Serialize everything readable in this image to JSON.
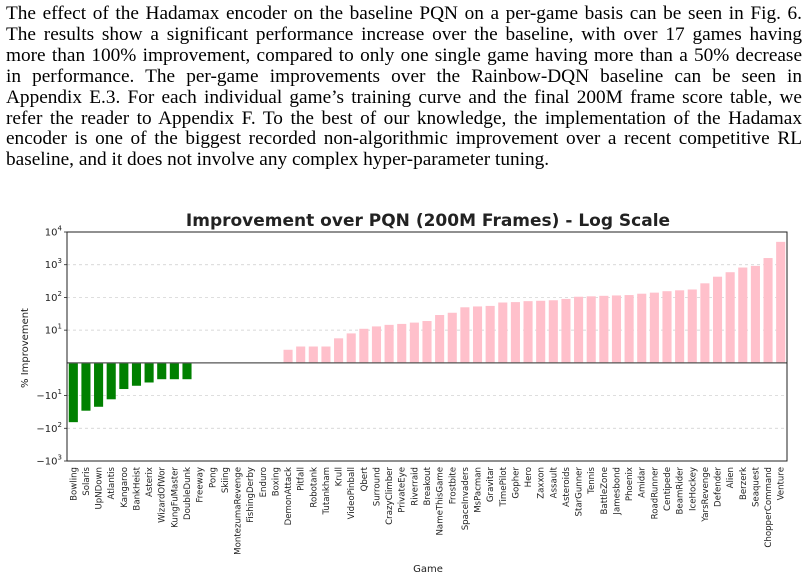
{
  "paragraph": {
    "lines": [
      "The effect of the Hadamax encoder on the baseline PQN on a per-game basis can be seen in Fig. 6.",
      "The results show a significant performance increase over the baseline, with over 17 games having",
      "more than 100% improvement, compared to only one single game having more than a 50% decrease",
      "in performance.  The per-game improvements over the Rainbow-DQN baseline can be seen in",
      "Appendix E.3. For each individual game’s training curve and the final 200M frame score table, we",
      "refer the reader to Appendix F. To the best of our knowledge, the implementation of the Hadamax",
      "encoder is one of the biggest recorded non-algorithmic improvement over a recent competitive RL",
      "baseline, and it does not involve any complex hyper-parameter tuning."
    ]
  },
  "chart_data": {
    "type": "bar",
    "title": "Improvement over PQN (200M Frames) - Log Scale",
    "xlabel": "Game",
    "ylabel": "% Improvement",
    "yscale": "symlog",
    "ylim": [
      -1000,
      10000
    ],
    "yticks": [
      {
        "value": 10000,
        "base": "10",
        "exp": "4"
      },
      {
        "value": 1000,
        "base": "10",
        "exp": "3"
      },
      {
        "value": 100,
        "base": "10",
        "exp": "2"
      },
      {
        "value": 10,
        "base": "10",
        "exp": "1"
      },
      {
        "value": -10,
        "base": "−10",
        "exp": "1"
      },
      {
        "value": -100,
        "base": "−10",
        "exp": "2"
      },
      {
        "value": -1000,
        "base": "−10",
        "exp": "3"
      }
    ],
    "grid": true,
    "colors": {
      "negative": "#008000",
      "positive": "#ffc0cb",
      "grid": "#cccccc",
      "zero_line": "#555555"
    },
    "categories": [
      "Bowling",
      "Solaris",
      "UpNDown",
      "Atlantis",
      "Kangaroo",
      "BankHeist",
      "Asterix",
      "WizardOfWor",
      "KungFuMaster",
      "DoubleDunk",
      "Freeway",
      "Pong",
      "Skiing",
      "MontezumaRevenge",
      "FishingDerby",
      "Enduro",
      "Boxing",
      "DemonAttack",
      "Pitfall",
      "Robotank",
      "Tutankham",
      "Krull",
      "VideoPinball",
      "Qbert",
      "Surround",
      "CrazyClimber",
      "PrivateEye",
      "Riverraid",
      "Breakout",
      "NameThisGame",
      "Frostbite",
      "SpaceInvaders",
      "MsPacman",
      "Gravitar",
      "TimePilot",
      "Gopher",
      "Hero",
      "Zaxxon",
      "Assault",
      "Asteroids",
      "StarGunner",
      "Tennis",
      "BattleZone",
      "Jamesbond",
      "Phoenix",
      "Amidar",
      "RoadRunner",
      "Centipede",
      "BeamRider",
      "IceHockey",
      "YarsRevenge",
      "Defender",
      "Alien",
      "Berzerk",
      "Seaquest",
      "ChopperCommand",
      "Venture"
    ],
    "values": [
      -65,
      -29,
      -22,
      -13,
      -8,
      -7,
      -6,
      -5,
      -5,
      -5,
      0,
      0,
      0,
      0,
      0,
      0,
      0,
      4,
      5,
      5,
      5,
      7.5,
      9,
      11,
      13,
      14.5,
      15.5,
      17,
      19,
      29,
      34,
      50,
      53,
      55,
      70,
      72,
      77,
      79,
      82,
      90,
      105,
      108,
      112,
      115,
      118,
      130,
      140,
      155,
      165,
      175,
      270,
      430,
      590,
      820,
      920,
      1600,
      5000
    ]
  }
}
